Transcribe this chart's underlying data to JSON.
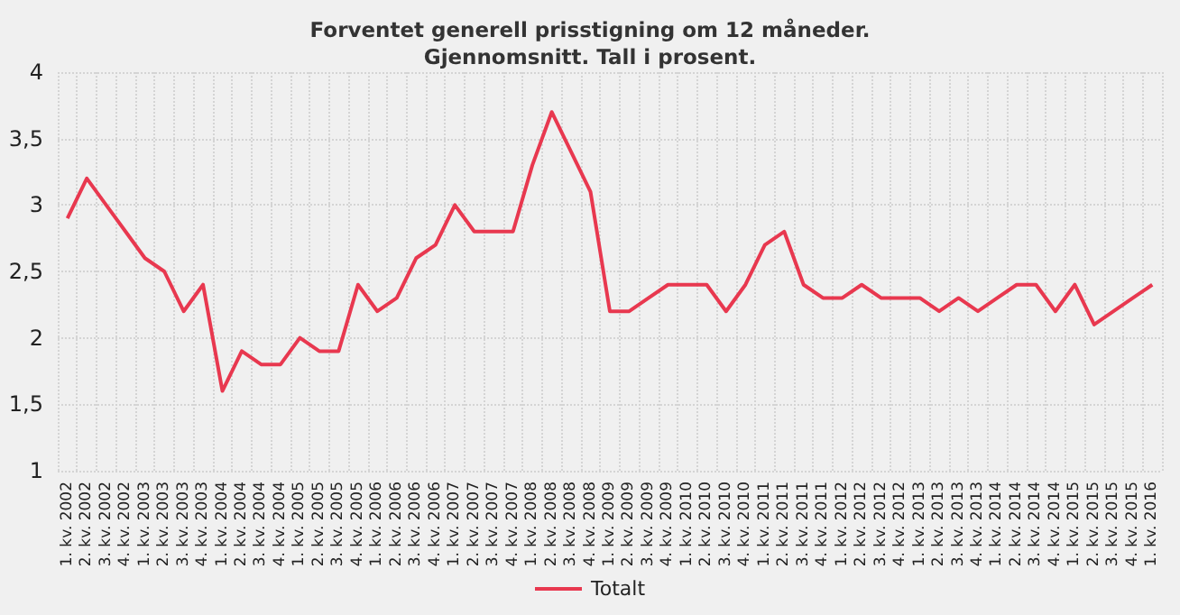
{
  "chart_data": {
    "type": "line",
    "title": "Forventet generell prisstigning om 12 måneder.\nGjennomsnitt. Tall i prosent.",
    "categories": [
      "1. kv. 2002",
      "2. kv. 2002",
      "3. kv. 2002",
      "4. kv. 2002",
      "1. kv. 2003",
      "2. kv. 2003",
      "3. kv. 2003",
      "4. kv. 2003",
      "1. kv. 2004",
      "2. kv. 2004",
      "3. kv. 2004",
      "4. kv. 2004",
      "1. kv. 2005",
      "2. kv. 2005",
      "3. kv. 2005",
      "4. kv. 2005",
      "1. kv. 2006",
      "2. kv. 2006",
      "3. kv. 2006",
      "4. kv. 2006",
      "1. kv. 2007",
      "2. kv. 2007",
      "3. kv. 2007",
      "4. kv. 2007",
      "1. kv. 2008",
      "2. kv. 2008",
      "3. kv. 2008",
      "4. kv. 2008",
      "1. kv. 2009",
      "2. kv. 2009",
      "3. kv. 2009",
      "4. kv. 2009",
      "1. kv. 2010",
      "2. kv. 2010",
      "3. kv. 2010",
      "4. kv. 2010",
      "1. kv. 2011",
      "2. kv. 2011",
      "3. kv. 2011",
      "4. kv. 2011",
      "1. kv. 2012",
      "2. kv. 2012",
      "3. kv. 2012",
      "4. kv. 2012",
      "1. kv. 2013",
      "2. kv. 2013",
      "3. kv. 2013",
      "4. kv. 2013",
      "1. kv. 2014",
      "2. kv. 2014",
      "3. kv. 2014",
      "4. kv. 2014",
      "1. kv. 2015",
      "2. kv. 2015",
      "3. kv. 2015",
      "4. kv. 2015",
      "1. kv. 2016"
    ],
    "series": [
      {
        "name": "Totalt",
        "color": "#e8384f",
        "values": [
          2.9,
          3.2,
          3.0,
          2.8,
          2.6,
          2.5,
          2.2,
          2.4,
          1.6,
          1.9,
          1.8,
          1.8,
          2.0,
          1.9,
          1.9,
          2.4,
          2.2,
          2.3,
          2.6,
          2.7,
          3.0,
          2.8,
          2.8,
          2.8,
          3.3,
          3.7,
          3.4,
          3.1,
          2.2,
          2.2,
          2.3,
          2.4,
          2.4,
          2.4,
          2.2,
          2.4,
          2.7,
          2.8,
          2.4,
          2.3,
          2.3,
          2.4,
          2.3,
          2.3,
          2.3,
          2.2,
          2.3,
          2.2,
          2.3,
          2.4,
          2.4,
          2.2,
          2.4,
          2.1,
          2.2,
          2.3,
          2.4
        ]
      }
    ],
    "ylim": [
      1,
      4
    ],
    "yticks": [
      1,
      {
        "value": 1.5,
        "label": "1,5"
      },
      2,
      {
        "value": 2.5,
        "label": "2,5"
      },
      3,
      {
        "value": 3.5,
        "label": "3,5"
      },
      4
    ],
    "grid": true,
    "legend": "bottom",
    "marker": "none",
    "line_style": "solid"
  }
}
